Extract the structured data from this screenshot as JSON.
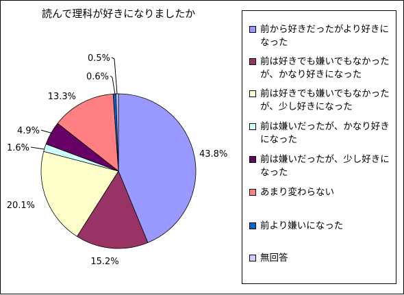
{
  "chart_data": {
    "type": "pie",
    "title": "読んで理科が好きになりましたか",
    "categories": [
      "前から好きだったがより好きになった",
      "前は好きでも嫌いでもなかったが、かなり好きになった",
      "前は好きでも嫌いでもなかったが、少し好きになった",
      "前は嫌いだったが、かなり好きになった",
      "前は嫌いだったが、少し好きになった",
      "あまり変わらない",
      "前より嫌いになった",
      "無回答"
    ],
    "values": [
      43.8,
      15.2,
      20.1,
      1.6,
      4.9,
      13.3,
      0.6,
      0.5
    ],
    "data_labels": [
      "43.8%",
      "15.2%",
      "20.1%",
      "1.6%",
      "4.9%",
      "13.3%",
      "0.6%",
      "0.5%"
    ],
    "colors": [
      "#9999ff",
      "#993366",
      "#ffffcc",
      "#ccffff",
      "#660066",
      "#ff8080",
      "#0066cc",
      "#ccccff"
    ],
    "legend_position": "right",
    "start_angle": "12 o'clock",
    "direction": "clockwise"
  }
}
